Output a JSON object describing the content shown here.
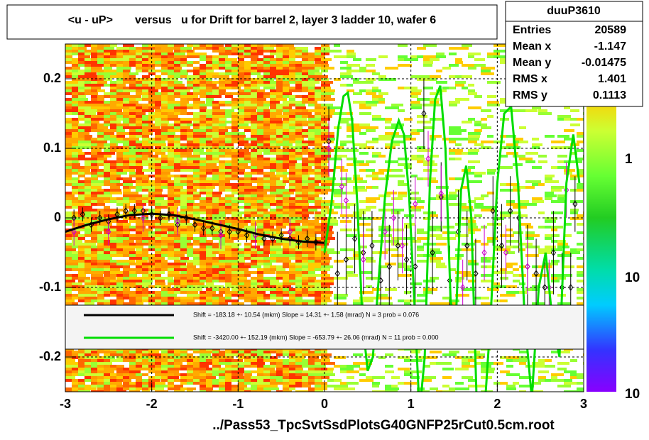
{
  "chart_data": {
    "type": "profile",
    "title": "<u - uP>       versus   u for Drift for barrel 2, layer 3 ladder 10, wafer 6",
    "x_label": "../Pass53_TpcSvtSsdPlotsG40GNFP25rCut0.5cm.root",
    "xlim": [
      -3,
      3
    ],
    "ylim": [
      -0.25,
      0.25
    ],
    "xticks": [
      -3,
      -2,
      -1,
      0,
      1,
      2,
      3
    ],
    "yticks": [
      -0.2,
      -0.1,
      0,
      0.1,
      0.2
    ],
    "grid": true,
    "stats": {
      "name": "duuP3610",
      "rows": [
        [
          "Entries",
          "20589"
        ],
        [
          "Mean x",
          "-1.147"
        ],
        [
          "Mean y",
          "-0.01475"
        ],
        [
          "RMS x",
          "1.401"
        ],
        [
          "RMS y",
          "0.1113"
        ]
      ]
    },
    "colorbar_labels": [
      "1",
      "10",
      "10"
    ],
    "fits": [
      {
        "label": "Shift =  -183.18 +- 10.54 (mkm) Slope =    14.31 +- 1.58 (mrad)  N = 3 prob = 0.076",
        "color": "#000000",
        "x": [
          -3,
          -2.75,
          -2.5,
          -2.25,
          -2,
          -1.75,
          -1.5,
          -1.25,
          -1,
          -0.75,
          -0.5,
          -0.25,
          0
        ],
        "values": [
          -0.02,
          -0.01,
          -0.002,
          0.004,
          0.006,
          0.004,
          -0.002,
          -0.009,
          -0.016,
          -0.024,
          -0.03,
          -0.034,
          -0.036
        ]
      },
      {
        "label": "Shift = -3420.00 +- 152.19 (mkm) Slope =  -653.79 +- 26.06 (mrad)  N = 11 prob = 0.000",
        "color": "#00dd00",
        "x": [
          0,
          0.08,
          0.16,
          0.22,
          0.27,
          0.32,
          0.38,
          0.44,
          0.5,
          0.56,
          0.62,
          0.7,
          0.78,
          0.86,
          0.92,
          0.98,
          1.04,
          1.1,
          1.16,
          1.22,
          1.28,
          1.34,
          1.4,
          1.46,
          1.52,
          1.58,
          1.64,
          1.7,
          1.76,
          1.84,
          1.92,
          2.0,
          2.08,
          2.16,
          2.24,
          2.32,
          2.4,
          2.48,
          2.56,
          2.64,
          2.72,
          2.8,
          2.88,
          2.95
        ],
        "values": [
          -0.05,
          0.02,
          0.13,
          0.175,
          0.18,
          0.14,
          0.02,
          -0.15,
          -0.22,
          -0.2,
          -0.1,
          0.03,
          0.11,
          0.14,
          0.12,
          0.03,
          -0.12,
          -0.28,
          -0.2,
          0.05,
          0.17,
          0.19,
          0.1,
          -0.12,
          -0.15,
          0.04,
          0.075,
          0.0,
          -0.26,
          -0.3,
          -0.15,
          0.05,
          0.15,
          0.16,
          0.05,
          -0.15,
          -0.26,
          -0.1,
          -0.05,
          -0.15,
          -0.2,
          0.05,
          0.12,
          0.05
        ]
      }
    ],
    "profiles": [
      {
        "color": "#000000",
        "x": [
          -2.9,
          -2.8,
          -2.7,
          -2.6,
          -2.5,
          -2.4,
          -2.3,
          -2.2,
          -2.1,
          -2.0,
          -1.9,
          -1.8,
          -1.7,
          -1.6,
          -1.5,
          -1.4,
          -1.3,
          -1.2,
          -1.1,
          -1.0,
          -0.9,
          -0.8,
          -0.7,
          -0.6,
          -0.5,
          -0.4,
          -0.3,
          -0.2,
          -0.1,
          0.05,
          0.15,
          0.25,
          0.35,
          0.45,
          0.55,
          0.65,
          0.75,
          0.85,
          0.95,
          1.05,
          1.15,
          1.25,
          1.35,
          1.45,
          1.55,
          1.65,
          1.75,
          1.95,
          2.05,
          2.15,
          2.25,
          2.35,
          2.45,
          2.55,
          2.65,
          2.75,
          2.85,
          2.9
        ],
        "values": [
          0.0,
          0.005,
          -0.01,
          0.0,
          -0.005,
          0.005,
          0.01,
          0.01,
          0.01,
          0.005,
          0.0,
          0.005,
          -0.01,
          0.0,
          -0.01,
          -0.015,
          -0.015,
          -0.02,
          -0.02,
          -0.02,
          -0.025,
          -0.025,
          -0.03,
          -0.03,
          -0.025,
          -0.03,
          -0.035,
          -0.03,
          -0.035,
          0.11,
          -0.08,
          -0.06,
          -0.03,
          -0.05,
          -0.04,
          -0.09,
          -0.07,
          -0.04,
          -0.06,
          -0.07,
          0.15,
          -0.05,
          0.03,
          -0.09,
          -0.02,
          -0.04,
          -0.08,
          0.01,
          -0.04,
          0.01,
          0.0,
          -0.07,
          -0.08,
          -0.1,
          -0.05,
          -0.1,
          -0.1,
          0.02
        ],
        "errors": [
          0.012,
          0.01,
          0.01,
          0.01,
          0.01,
          0.01,
          0.01,
          0.01,
          0.01,
          0.01,
          0.01,
          0.01,
          0.01,
          0.01,
          0.01,
          0.01,
          0.01,
          0.01,
          0.01,
          0.01,
          0.01,
          0.01,
          0.01,
          0.01,
          0.01,
          0.01,
          0.01,
          0.012,
          0.012,
          0.05,
          0.06,
          0.05,
          0.05,
          0.06,
          0.05,
          0.05,
          0.06,
          0.05,
          0.05,
          0.06,
          0.05,
          0.06,
          0.05,
          0.05,
          0.06,
          0.05,
          0.05,
          0.05,
          0.06,
          0.05,
          0.05,
          0.06,
          0.05,
          0.05,
          0.06,
          0.05,
          0.05,
          0.04
        ]
      },
      {
        "color": "#cc00cc",
        "x": [
          -2.9,
          -2.5,
          -2.1,
          -1.7,
          -1.2,
          -0.8,
          -0.4,
          0.05,
          0.2,
          0.25,
          0.45,
          0.7,
          0.8,
          0.9,
          1.05,
          1.2,
          1.35,
          1.6,
          1.85,
          2.1,
          2.35,
          2.6,
          2.8
        ],
        "values": [
          -0.02,
          -0.02,
          0.0,
          -0.005,
          -0.025,
          -0.025,
          -0.02,
          0.1,
          0.045,
          0.025,
          -0.06,
          -0.02,
          0.0,
          -0.04,
          0.02,
          0.085,
          0.035,
          -0.1,
          -0.05,
          -0.05,
          -0.07,
          -0.1,
          0.04
        ],
        "errors": [
          0.02,
          0.02,
          0.02,
          0.02,
          0.02,
          0.02,
          0.02,
          0.04,
          0.04,
          0.04,
          0.04,
          0.04,
          0.04,
          0.04,
          0.04,
          0.04,
          0.04,
          0.04,
          0.04,
          0.04,
          0.04,
          0.04,
          0.04
        ]
      }
    ]
  }
}
